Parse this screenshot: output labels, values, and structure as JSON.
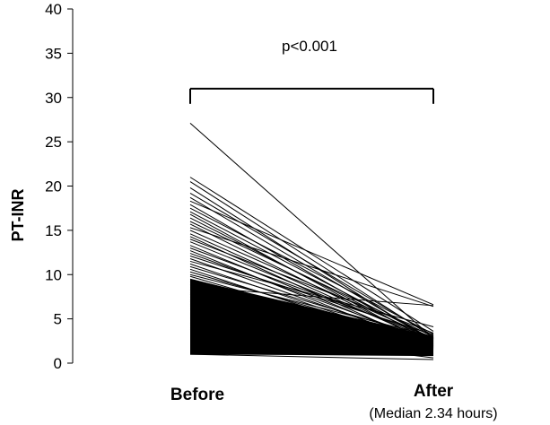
{
  "chart_data": {
    "type": "line",
    "ylabel": "PT-INR",
    "ylim": [
      0,
      40
    ],
    "yticks": [
      "0",
      "5",
      "10",
      "15",
      "20",
      "25",
      "30",
      "35",
      "40"
    ],
    "categories": [
      "Before",
      "After"
    ],
    "category_sublabels": [
      "",
      "(Median 2.34 hours)"
    ],
    "grid": false,
    "legend": "none",
    "significance": {
      "label": "p<0.001",
      "y": 31
    },
    "pairs": [
      [
        27.1,
        2.8
      ],
      [
        21.0,
        3.6
      ],
      [
        20.5,
        2.9
      ],
      [
        19.8,
        2.4
      ],
      [
        19.2,
        3.1
      ],
      [
        18.7,
        2.6
      ],
      [
        18.3,
        6.6
      ],
      [
        17.9,
        2.2
      ],
      [
        17.5,
        3.3
      ],
      [
        17.1,
        2.7
      ],
      [
        16.8,
        1.9
      ],
      [
        16.4,
        2.5
      ],
      [
        16.0,
        3.0
      ],
      [
        15.7,
        2.1
      ],
      [
        15.3,
        6.4
      ],
      [
        15.0,
        2.8
      ],
      [
        14.6,
        2.3
      ],
      [
        14.3,
        1.8
      ],
      [
        14.0,
        3.4
      ],
      [
        13.7,
        2.6
      ],
      [
        13.3,
        2.0
      ],
      [
        13.0,
        2.9
      ],
      [
        12.7,
        1.7
      ],
      [
        12.4,
        2.4
      ],
      [
        12.1,
        3.2
      ],
      [
        11.8,
        2.1
      ],
      [
        11.5,
        4.1
      ],
      [
        11.2,
        1.9
      ],
      [
        10.9,
        2.7
      ],
      [
        10.6,
        1.6
      ],
      [
        10.3,
        2.3
      ],
      [
        10.0,
        3.0
      ],
      [
        9.8,
        1.8
      ],
      [
        9.5,
        2.5
      ],
      [
        9.2,
        1.5
      ],
      [
        8.9,
        2.2
      ],
      [
        8.6,
        6.5
      ],
      [
        8.3,
        1.9
      ],
      [
        8.0,
        2.8
      ],
      [
        7.8,
        1.4
      ],
      [
        7.5,
        2.1
      ],
      [
        7.2,
        1.7
      ],
      [
        7.0,
        2.6
      ],
      [
        6.7,
        1.3
      ],
      [
        6.5,
        1.0
      ],
      [
        6.2,
        2.0
      ],
      [
        6.0,
        1.6
      ],
      [
        5.7,
        2.4
      ],
      [
        5.5,
        1.2
      ],
      [
        5.2,
        1.9
      ],
      [
        5.0,
        1.5
      ],
      [
        4.8,
        2.2
      ],
      [
        4.5,
        1.1
      ],
      [
        4.3,
        1.7
      ],
      [
        4.0,
        0.6
      ],
      [
        3.8,
        1.4
      ],
      [
        3.5,
        2.0
      ],
      [
        3.3,
        1.0
      ],
      [
        3.0,
        1.6
      ],
      [
        2.8,
        1.2
      ],
      [
        2.5,
        1.8
      ],
      [
        2.3,
        0.9
      ],
      [
        2.0,
        1.3
      ],
      [
        1.8,
        1.0
      ],
      [
        1.5,
        1.2
      ],
      [
        1.2,
        0.9
      ],
      [
        1.0,
        1.0
      ],
      [
        1.0,
        0.4
      ]
    ]
  }
}
